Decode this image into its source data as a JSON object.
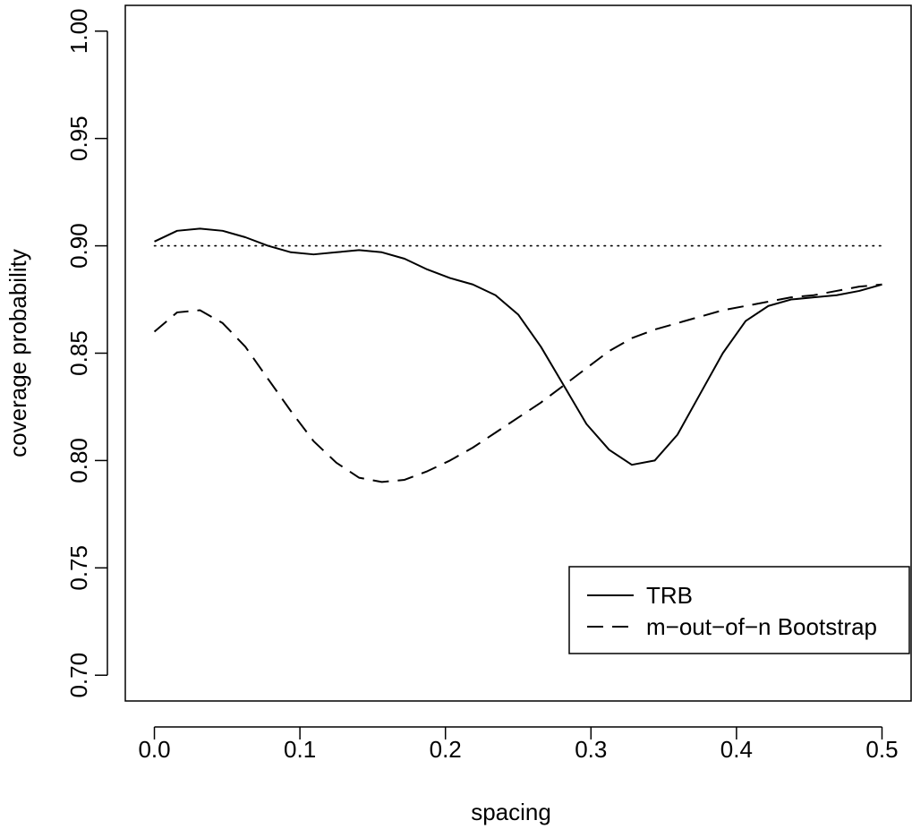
{
  "chart_data": {
    "type": "line",
    "title": "",
    "xlabel": "spacing",
    "ylabel": "coverage probability",
    "xlim": [
      -0.02,
      0.52
    ],
    "ylim": [
      0.688,
      1.012
    ],
    "x_ticks": [
      0.0,
      0.1,
      0.2,
      0.3,
      0.4,
      0.5
    ],
    "x_tick_labels": [
      "0.0",
      "0.1",
      "0.2",
      "0.3",
      "0.4",
      "0.5"
    ],
    "y_ticks": [
      0.7,
      0.75,
      0.8,
      0.85,
      0.9,
      0.95,
      1.0
    ],
    "y_tick_labels": [
      "0.70",
      "0.75",
      "0.80",
      "0.85",
      "0.90",
      "0.95",
      "1.00"
    ],
    "grid": false,
    "legend_position": "bottom-right",
    "series": [
      {
        "name": "TRB",
        "line_style": "solid",
        "x": [
          0.0,
          0.0156,
          0.0313,
          0.0469,
          0.0625,
          0.0781,
          0.0938,
          0.1094,
          0.125,
          0.1406,
          0.1563,
          0.1719,
          0.1875,
          0.2031,
          0.2188,
          0.2344,
          0.25,
          0.2656,
          0.2813,
          0.2969,
          0.3125,
          0.3281,
          0.3438,
          0.3594,
          0.375,
          0.3906,
          0.4063,
          0.4219,
          0.4375,
          0.4531,
          0.4688,
          0.4844,
          0.5
        ],
        "y": [
          0.902,
          0.907,
          0.908,
          0.907,
          0.904,
          0.9,
          0.897,
          0.896,
          0.897,
          0.898,
          0.897,
          0.894,
          0.889,
          0.885,
          0.882,
          0.877,
          0.868,
          0.853,
          0.835,
          0.817,
          0.805,
          0.798,
          0.8,
          0.812,
          0.831,
          0.85,
          0.865,
          0.872,
          0.875,
          0.876,
          0.877,
          0.879,
          0.882
        ]
      },
      {
        "name": "m−out−of−n Bootstrap",
        "line_style": "dashed",
        "x": [
          0.0,
          0.0156,
          0.0313,
          0.0469,
          0.0625,
          0.0781,
          0.0938,
          0.1094,
          0.125,
          0.1406,
          0.1563,
          0.1719,
          0.1875,
          0.2031,
          0.2188,
          0.2344,
          0.25,
          0.2656,
          0.2813,
          0.2969,
          0.3125,
          0.3281,
          0.3438,
          0.3594,
          0.375,
          0.3906,
          0.4063,
          0.4219,
          0.4375,
          0.4531,
          0.4688,
          0.4844,
          0.5
        ],
        "y": [
          0.86,
          0.869,
          0.87,
          0.864,
          0.853,
          0.838,
          0.823,
          0.809,
          0.799,
          0.792,
          0.79,
          0.791,
          0.795,
          0.8,
          0.806,
          0.813,
          0.82,
          0.827,
          0.835,
          0.843,
          0.851,
          0.857,
          0.861,
          0.864,
          0.867,
          0.87,
          0.872,
          0.874,
          0.876,
          0.877,
          0.879,
          0.881,
          0.882
        ]
      }
    ],
    "reference_line": {
      "y": 0.9,
      "line_style": "dotted",
      "x_range": [
        0.0,
        0.5
      ]
    },
    "colors": {
      "line": "#000000",
      "background": "#ffffff"
    }
  }
}
